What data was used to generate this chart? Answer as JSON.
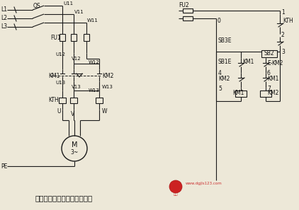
{
  "title": "接触器联锁的正反转控制线路",
  "bg_color": "#ede8d8",
  "line_color": "#1a1a1a",
  "text_color": "#111111",
  "watermark_text": "www.dgjls123.com",
  "watermark_color": "#cc3333",
  "logo_color": "#cc2222",
  "phases": [
    [
      "L1",
      14
    ],
    [
      "L2",
      26
    ],
    [
      "L3",
      38
    ]
  ],
  "xu11": 88,
  "xu12": 104,
  "xu13": 122,
  "xctrl_r": 395,
  "xctrl_l": 305,
  "xbranch_l": 340,
  "xbranch_r": 375
}
